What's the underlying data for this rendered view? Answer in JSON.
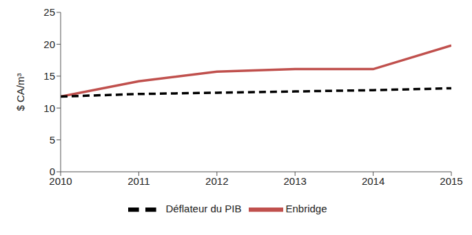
{
  "chart_data": {
    "type": "line",
    "y_label": "$ CA/m³",
    "x": [
      2010,
      2011,
      2012,
      2013,
      2014,
      2015
    ],
    "xlim": [
      2010,
      2015
    ],
    "xticks": [
      2010,
      2011,
      2012,
      2013,
      2014,
      2015
    ],
    "ylim": [
      0,
      25
    ],
    "yticks": [
      0,
      5,
      10,
      15,
      20,
      25
    ],
    "grid": false,
    "legend": "bottom",
    "series": [
      {
        "name": "Enbridge",
        "color": "#c0504d",
        "line_style": "solid",
        "values": [
          11.8,
          14.2,
          15.7,
          16.1,
          16.1,
          19.8
        ]
      },
      {
        "name": "Déflateur du PIB",
        "color": "#000000",
        "line_style": "dashed",
        "values": [
          11.8,
          12.2,
          12.4,
          12.6,
          12.8,
          13.1
        ]
      }
    ]
  }
}
